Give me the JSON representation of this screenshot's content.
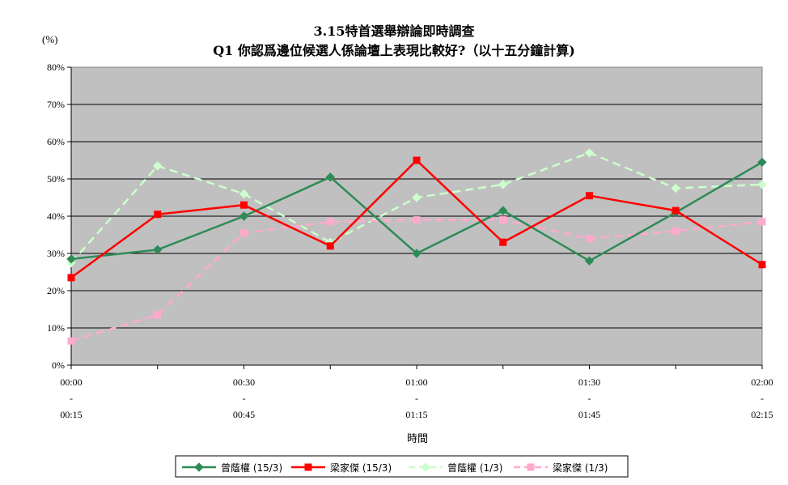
{
  "chart_data": {
    "type": "line",
    "title": "3.15特首選舉辯論即時調查",
    "subtitle": "Q1 你認爲邊位候選人係論壇上表現比較好?（以十五分鐘計算)",
    "ylabel": "(%)",
    "xlabel": "時間",
    "ylim": [
      0,
      80
    ],
    "yticks": [
      "0%",
      "10%",
      "20%",
      "30%",
      "40%",
      "50%",
      "60%",
      "70%",
      "80%"
    ],
    "categories": [
      "00:00-00:15",
      "00:15-00:30",
      "00:30-00:45",
      "00:45-01:00",
      "01:00-01:15",
      "01:15-01:30",
      "01:30-01:45",
      "01:45-02:00",
      "02:00-02:15"
    ],
    "xtick_labels": [
      {
        "top": "00:00",
        "dash": "-",
        "bottom": "00:15"
      },
      {
        "top": "00:30",
        "dash": "-",
        "bottom": "00:45"
      },
      {
        "top": "01:00",
        "dash": "-",
        "bottom": "01:15"
      },
      {
        "top": "01:30",
        "dash": "-",
        "bottom": "01:45"
      },
      {
        "top": "02:00",
        "dash": "-",
        "bottom": "02:15"
      }
    ],
    "grid": true,
    "legend_position": "bottom",
    "series": [
      {
        "name": "曾蔭權 (15/3)",
        "color": "#2e8b57",
        "marker": "diamond",
        "dash": false,
        "values": [
          28.5,
          31,
          40,
          50.5,
          30,
          41.5,
          28,
          41,
          54.5
        ]
      },
      {
        "name": "梁家傑 (15/3)",
        "color": "#ff0000",
        "marker": "square",
        "dash": false,
        "values": [
          23.5,
          40.5,
          43,
          32,
          55,
          33,
          45.5,
          41.5,
          27
        ]
      },
      {
        "name": "曾蔭權 (1/3)",
        "color": "#ccffcc",
        "marker": "diamond",
        "dash": true,
        "values": [
          27.5,
          53.5,
          46,
          33,
          45,
          48.5,
          57,
          47.5,
          48.5
        ]
      },
      {
        "name": "梁家傑 (1/3)",
        "color": "#ffaacc",
        "marker": "square",
        "dash": true,
        "values": [
          6.5,
          13.5,
          35.5,
          38.5,
          39,
          39,
          34,
          36,
          38.5
        ]
      }
    ]
  }
}
